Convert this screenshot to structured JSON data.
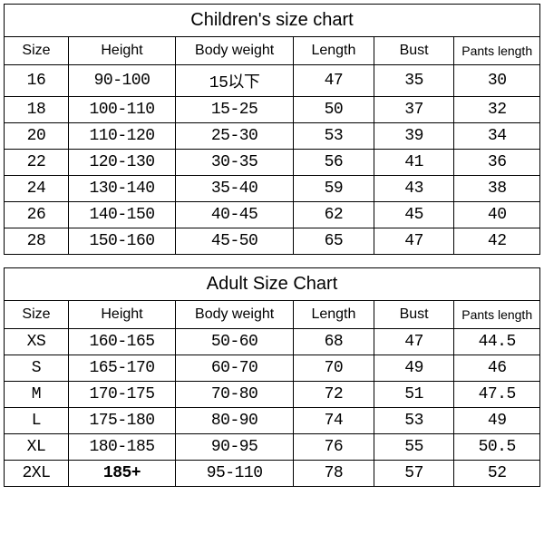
{
  "children_chart": {
    "title": "Children's size chart",
    "columns": [
      "Size",
      "Height",
      "Body weight",
      "Length",
      "Bust",
      "Pants length"
    ],
    "rows": [
      [
        "16",
        "90-100",
        "15以下",
        "47",
        "35",
        "30"
      ],
      [
        "18",
        "100-110",
        "15-25",
        "50",
        "37",
        "32"
      ],
      [
        "20",
        "110-120",
        "25-30",
        "53",
        "39",
        "34"
      ],
      [
        "22",
        "120-130",
        "30-35",
        "56",
        "41",
        "36"
      ],
      [
        "24",
        "130-140",
        "35-40",
        "59",
        "43",
        "38"
      ],
      [
        "26",
        "140-150",
        "40-45",
        "62",
        "45",
        "40"
      ],
      [
        "28",
        "150-160",
        "45-50",
        "65",
        "47",
        "42"
      ]
    ]
  },
  "adult_chart": {
    "title": "Adult Size Chart",
    "columns": [
      "Size",
      "Height",
      "Body weight",
      "Length",
      "Bust",
      "Pants length"
    ],
    "rows": [
      [
        "XS",
        "160-165",
        "50-60",
        "68",
        "47",
        "44.5"
      ],
      [
        "S",
        "165-170",
        "60-70",
        "70",
        "49",
        "46"
      ],
      [
        "M",
        "170-175",
        "70-80",
        "72",
        "51",
        "47.5"
      ],
      [
        "L",
        "175-180",
        "80-90",
        "74",
        "53",
        "49"
      ],
      [
        "XL",
        "180-185",
        "90-95",
        "76",
        "55",
        "50.5"
      ],
      [
        "2XL",
        "185+",
        "95-110",
        "78",
        "57",
        "52"
      ]
    ]
  },
  "styling": {
    "background_color": "#ffffff",
    "border_color": "#000000",
    "title_fontsize": 20,
    "header_fontsize": 16,
    "cell_fontsize": 18,
    "column_widths_pct": [
      12,
      20,
      22,
      15,
      15,
      16
    ]
  }
}
